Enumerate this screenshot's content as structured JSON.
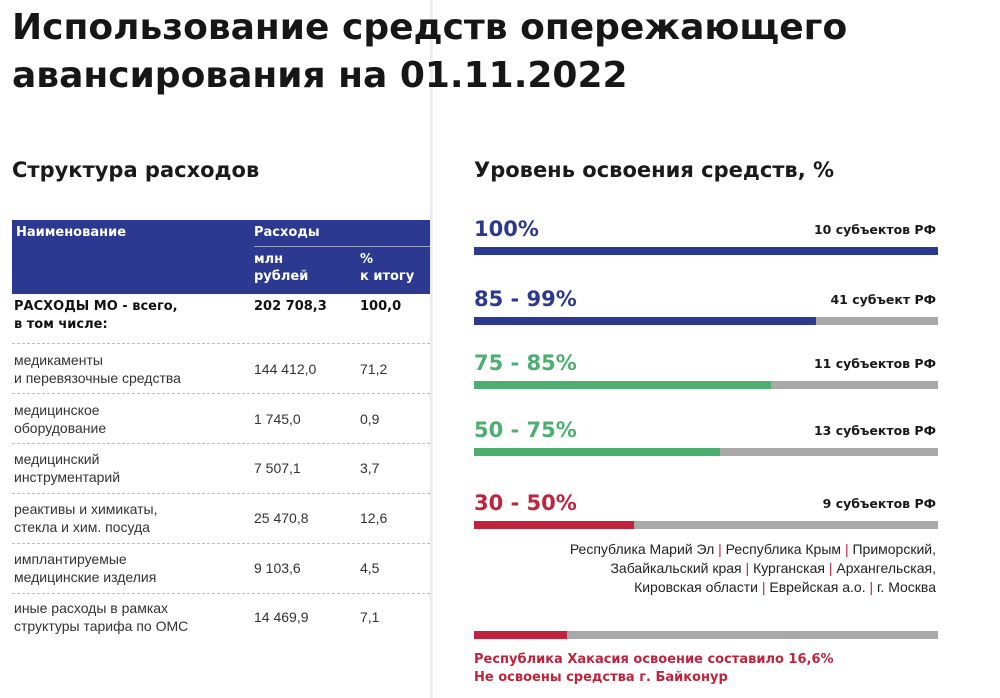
{
  "title": "Использование средств опережающего авансирования на 01.11.2022",
  "left": {
    "heading": "Структура расходов",
    "table": {
      "col_name": "Наименование",
      "col_expenses": "Расходы",
      "col_units": "млн\nрублей",
      "col_share": "%\nк итогу",
      "rows": [
        {
          "name": "РАСХОДЫ  МО - всего,\nв том числе:",
          "value": "202 708,3",
          "share": "100,0"
        },
        {
          "name": "медикаменты\nи перевязочные средства",
          "value": "144 412,0",
          "share": "71,2"
        },
        {
          "name": "медицинское\nоборудование",
          "value": "1 745,0",
          "share": "0,9"
        },
        {
          "name": "медицинский\nинструментарий",
          "value": "7 507,1",
          "share": "3,7"
        },
        {
          "name": "реактивы и химикаты,\nстекла и хим. посуда",
          "value": "25 470,8",
          "share": "12,6"
        },
        {
          "name": "имплантируемые\nмедицинские изделия",
          "value": "9 103,6",
          "share": "4,5"
        },
        {
          "name": "иные расходы в рамках\nструктуры тарифа по ОМС",
          "value": "14 469,9",
          "share": "7,1"
        }
      ]
    }
  },
  "right": {
    "heading": "Уровень освоения средств, %",
    "levels": [
      {
        "label": "100%",
        "count": "10 субъектов РФ",
        "color": "#2b3990",
        "fill": 1.0
      },
      {
        "label": "85 - 99%",
        "count": "41 субъект РФ",
        "color": "#2b3990",
        "fill": 0.737
      },
      {
        "label": "75 - 85%",
        "count": "11 субъектов РФ",
        "color": "#4caf70",
        "fill": 0.64
      },
      {
        "label": "50 - 75%",
        "count": "13 субъектов РФ",
        "color": "#4caf70",
        "fill": 0.53
      },
      {
        "label": "30 - 50%",
        "count": "9 субъектов РФ",
        "color": "#c0233c",
        "fill": 0.345
      }
    ],
    "regions": [
      "Республика Марий Эл",
      "Республика Крым",
      "Приморский,",
      "Забайкальский края",
      "Курганская",
      "Архангельская,",
      "Кировская области",
      "Еврейская а.о.",
      "г. Москва"
    ],
    "extra_bar": {
      "color": "#c0233c",
      "fill": 0.2
    },
    "note_1": "Республика Хакасия  освоение составило 16,6%",
    "note_2": "Не освоены средства г. Байконур"
  }
}
